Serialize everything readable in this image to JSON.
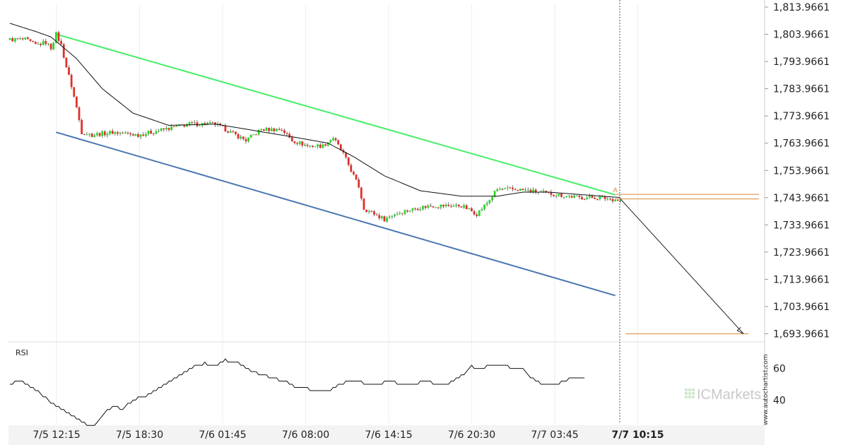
{
  "colors": {
    "bull": "#22dd22",
    "bear": "#e0302a",
    "upper_channel": "#44ee66",
    "lower_channel": "#4a76b0",
    "level": "#d9843a",
    "ma": "#111111",
    "rsi": "#111111",
    "brand_tile": "#cfe9cf"
  },
  "chart_data": [
    {
      "type": "candlestick",
      "title": "",
      "ylim": [
        1691.0,
        1815.0
      ],
      "y_ticks": [
        "1,813.9661",
        "1,803.9661",
        "1,793.9661",
        "1,783.9661",
        "1,773.9661",
        "1,763.9661",
        "1,753.9661",
        "1,743.9661",
        "1,733.9661",
        "1,723.9661",
        "1,713.9661",
        "1,703.9661",
        "1,693.9661"
      ],
      "y_tick_values": [
        1813.9661,
        1803.9661,
        1793.9661,
        1783.9661,
        1773.9661,
        1763.9661,
        1753.9661,
        1743.9661,
        1733.9661,
        1723.9661,
        1713.9661,
        1703.9661,
        1693.9661
      ],
      "x_ticks": [
        {
          "label": "7/5 12:15",
          "bold": false
        },
        {
          "label": "7/5 18:30",
          "bold": false
        },
        {
          "label": "7/6 01:45",
          "bold": false
        },
        {
          "label": "7/6 08:00",
          "bold": false
        },
        {
          "label": "7/6 14:15",
          "bold": false
        },
        {
          "label": "7/6 20:30",
          "bold": false
        },
        {
          "label": "7/7 03:45",
          "bold": false
        },
        {
          "label": "7/7 10:15",
          "bold": true
        }
      ],
      "close_anchors": [
        [
          0,
          1802
        ],
        [
          6,
          1802
        ],
        [
          10,
          1800
        ],
        [
          14,
          1801
        ],
        [
          16,
          1799
        ],
        [
          18,
          1804
        ],
        [
          20,
          1800
        ],
        [
          22,
          1792
        ],
        [
          24,
          1785
        ],
        [
          26,
          1777
        ],
        [
          28,
          1768
        ],
        [
          32,
          1767
        ],
        [
          40,
          1768
        ],
        [
          50,
          1767
        ],
        [
          60,
          1769
        ],
        [
          70,
          1771
        ],
        [
          80,
          1771
        ],
        [
          88,
          1767
        ],
        [
          92,
          1765
        ],
        [
          98,
          1769
        ],
        [
          106,
          1769
        ],
        [
          110,
          1765
        ],
        [
          116,
          1763
        ],
        [
          122,
          1763
        ],
        [
          126,
          1766
        ],
        [
          130,
          1760
        ],
        [
          134,
          1752
        ],
        [
          136,
          1748
        ],
        [
          138,
          1740
        ],
        [
          142,
          1738
        ],
        [
          146,
          1736
        ],
        [
          150,
          1738
        ],
        [
          158,
          1740
        ],
        [
          164,
          1741
        ],
        [
          176,
          1741
        ],
        [
          182,
          1738
        ],
        [
          186,
          1742
        ],
        [
          190,
          1747
        ],
        [
          198,
          1747
        ],
        [
          206,
          1746
        ],
        [
          214,
          1745
        ],
        [
          222,
          1744
        ],
        [
          230,
          1744
        ],
        [
          238,
          1743
        ]
      ],
      "moving_average_anchors": [
        [
          0,
          1808
        ],
        [
          10,
          1805
        ],
        [
          16,
          1803
        ],
        [
          26,
          1795
        ],
        [
          36,
          1784
        ],
        [
          48,
          1775
        ],
        [
          62,
          1770.5
        ],
        [
          80,
          1771
        ],
        [
          96,
          1768.5
        ],
        [
          112,
          1766
        ],
        [
          124,
          1764
        ],
        [
          134,
          1759
        ],
        [
          146,
          1752
        ],
        [
          160,
          1746.5
        ],
        [
          176,
          1744.5
        ],
        [
          190,
          1744.5
        ],
        [
          200,
          1746
        ],
        [
          210,
          1746
        ],
        [
          224,
          1745
        ],
        [
          238,
          1744
        ]
      ],
      "upper_channel": {
        "start": [
          18,
          1804
        ],
        "end": [
          236,
          1745
        ]
      },
      "lower_channel": {
        "start": [
          18,
          1768
        ],
        "end": [
          236,
          1708
        ]
      },
      "projection": {
        "from": [
          238,
          1743.5
        ],
        "to": [
          286,
          1693.9661
        ]
      },
      "levels": [
        {
          "price": 1745.2,
          "x_from": 236,
          "x_to": 292
        },
        {
          "price": 1743.5,
          "x_from": 236,
          "x_to": 292
        },
        {
          "price": 1693.9661,
          "x_from": 240,
          "x_to": 288
        }
      ],
      "marker_label": "A",
      "rsi": {
        "title": "RSI",
        "ylim": [
          25,
          75
        ],
        "y_ticks": [
          "60",
          "40"
        ],
        "y_tick_values": [
          60,
          40
        ],
        "anchors": [
          [
            0,
            50
          ],
          [
            4,
            52
          ],
          [
            8,
            48
          ],
          [
            12,
            44
          ],
          [
            16,
            38
          ],
          [
            20,
            34
          ],
          [
            24,
            30
          ],
          [
            28,
            26
          ],
          [
            32,
            23
          ],
          [
            36,
            30
          ],
          [
            40,
            36
          ],
          [
            44,
            34
          ],
          [
            48,
            40
          ],
          [
            52,
            42
          ],
          [
            56,
            45
          ],
          [
            60,
            50
          ],
          [
            64,
            53
          ],
          [
            68,
            57
          ],
          [
            72,
            61
          ],
          [
            76,
            63
          ],
          [
            80,
            61
          ],
          [
            84,
            65
          ],
          [
            88,
            64
          ],
          [
            92,
            60
          ],
          [
            96,
            57
          ],
          [
            100,
            55
          ],
          [
            104,
            53
          ],
          [
            108,
            51
          ],
          [
            112,
            48
          ],
          [
            116,
            47
          ],
          [
            120,
            46
          ],
          [
            124,
            46
          ],
          [
            128,
            49
          ],
          [
            132,
            52
          ],
          [
            136,
            52
          ],
          [
            140,
            49
          ],
          [
            144,
            50
          ],
          [
            148,
            52
          ],
          [
            152,
            50
          ],
          [
            156,
            50
          ],
          [
            160,
            51
          ],
          [
            164,
            51
          ],
          [
            168,
            50
          ],
          [
            172,
            51
          ],
          [
            176,
            55
          ],
          [
            180,
            61
          ],
          [
            184,
            60
          ],
          [
            188,
            62
          ],
          [
            192,
            62
          ],
          [
            196,
            60
          ],
          [
            200,
            59
          ],
          [
            204,
            53
          ],
          [
            208,
            49
          ],
          [
            212,
            49
          ],
          [
            216,
            52
          ],
          [
            220,
            54
          ],
          [
            224,
            54
          ]
        ]
      }
    }
  ],
  "brand": {
    "ic": "IC",
    "markets": "Markets"
  },
  "watermark": "www.autochartist.com"
}
